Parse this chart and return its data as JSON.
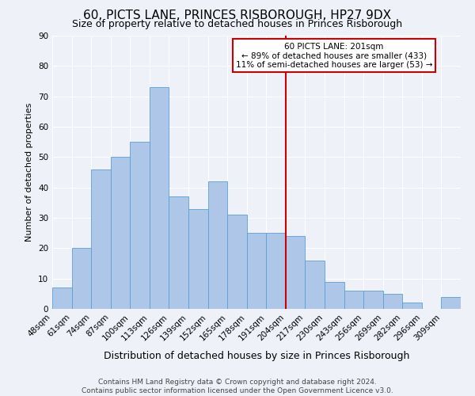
{
  "title": "60, PICTS LANE, PRINCES RISBOROUGH, HP27 9DX",
  "subtitle": "Size of property relative to detached houses in Princes Risborough",
  "xlabel": "Distribution of detached houses by size in Princes Risborough",
  "ylabel": "Number of detached properties",
  "bar_labels": [
    "48sqm",
    "61sqm",
    "74sqm",
    "87sqm",
    "100sqm",
    "113sqm",
    "126sqm",
    "139sqm",
    "152sqm",
    "165sqm",
    "178sqm",
    "191sqm",
    "204sqm",
    "217sqm",
    "230sqm",
    "243sqm",
    "256sqm",
    "269sqm",
    "282sqm",
    "296sqm",
    "309sqm"
  ],
  "bar_values": [
    7,
    20,
    46,
    50,
    55,
    73,
    37,
    33,
    42,
    31,
    25,
    25,
    24,
    16,
    9,
    6,
    6,
    5,
    2,
    0,
    4
  ],
  "bar_color": "#aec6e8",
  "bar_edge_color": "#5a9fd4",
  "ylim": [
    0,
    90
  ],
  "yticks": [
    0,
    10,
    20,
    30,
    40,
    50,
    60,
    70,
    80,
    90
  ],
  "vline_x_index": 11.5,
  "vline_color": "#cc0000",
  "annotation_title": "60 PICTS LANE: 201sqm",
  "annotation_line1": "← 89% of detached houses are smaller (433)",
  "annotation_line2": "11% of semi-detached houses are larger (53) →",
  "footer1": "Contains HM Land Registry data © Crown copyright and database right 2024.",
  "footer2": "Contains public sector information licensed under the Open Government Licence v3.0.",
  "background_color": "#eef2f8",
  "grid_color": "#ffffff",
  "title_fontsize": 11,
  "subtitle_fontsize": 9,
  "xlabel_fontsize": 9,
  "ylabel_fontsize": 8,
  "tick_fontsize": 7.5,
  "footer_fontsize": 6.5
}
